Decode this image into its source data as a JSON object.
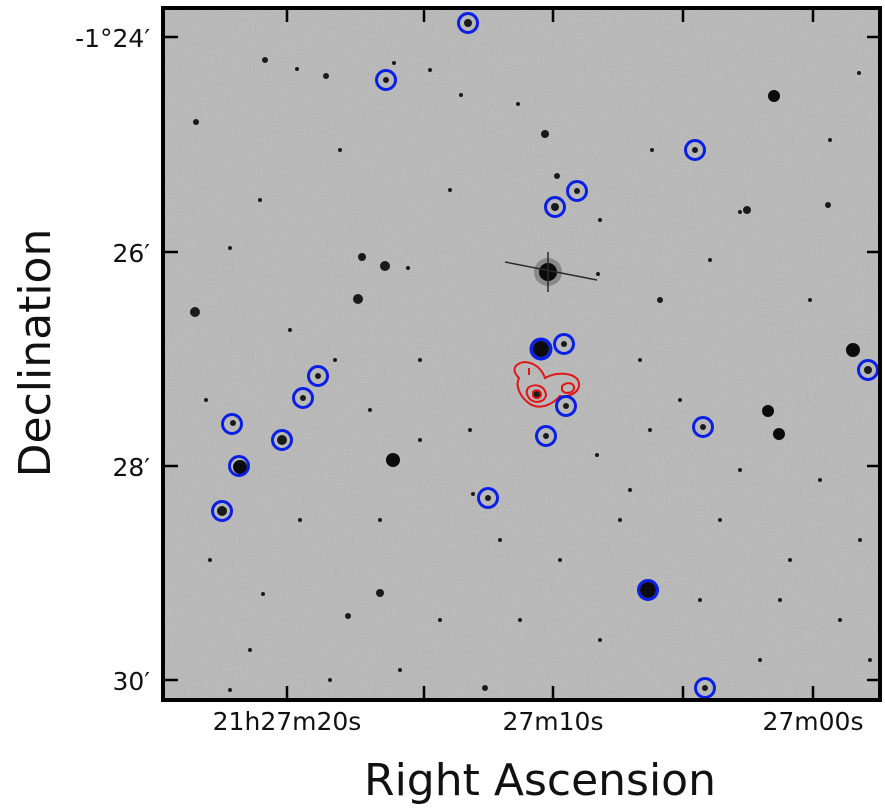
{
  "image": {
    "subject": "grayscale-sky-field",
    "colors": {
      "sky_background": "#b8b8b8",
      "source_marker": "#0a1fe6",
      "contour": "#e01515",
      "frame": "#000000"
    }
  },
  "axes": {
    "x_title": "Right Ascension",
    "y_title": "Declination",
    "x_ticks": [
      {
        "id": "ra-20s",
        "label": "21h27m20s"
      },
      {
        "id": "ra-10s",
        "label": "27m10s"
      },
      {
        "id": "ra-00s",
        "label": "27m00s"
      }
    ],
    "y_ticks": [
      {
        "id": "dec-24",
        "label": "-1°24′"
      },
      {
        "id": "dec-26",
        "label": "26′"
      },
      {
        "id": "dec-28",
        "label": "28′"
      },
      {
        "id": "dec-30",
        "label": "30′"
      }
    ]
  },
  "markers": {
    "count_visible": 21,
    "style": "blue-circle"
  }
}
